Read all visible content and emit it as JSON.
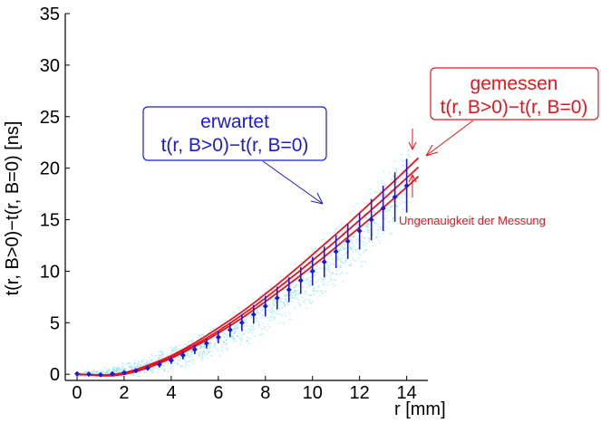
{
  "chart_data": {
    "type": "scatter",
    "title": "",
    "xlabel": "r [mm]",
    "ylabel": "t(r, B>0)−t(r, B=0) [ns]",
    "xlim": [
      -0.5,
      14.9
    ],
    "ylim": [
      -0.6,
      35
    ],
    "x_ticks": [
      "0",
      "2",
      "4",
      "6",
      "8",
      "10",
      "12",
      "14"
    ],
    "y_ticks": [
      "0",
      "5",
      "10",
      "15",
      "20",
      "25",
      "30",
      "35"
    ],
    "grid": false,
    "legend": "none",
    "colors": {
      "expected": "#1a1adb",
      "measured": "#e8141e",
      "cloud": "#7fe3ea"
    },
    "series": [
      {
        "kind": "points_with_errorbars",
        "x": [
          0,
          0.5,
          1,
          1.5,
          2,
          2.5,
          3,
          3.5,
          4,
          4.5,
          5,
          5.5,
          6,
          6.5,
          7,
          7.5,
          8,
          8.5,
          9,
          9.5,
          10,
          10.5,
          11,
          11.5,
          12,
          12.5,
          13,
          13.5,
          14
        ],
        "y": [
          0.05,
          0,
          -0.05,
          0.05,
          0.15,
          0.35,
          0.6,
          0.95,
          1.35,
          1.85,
          2.4,
          3.0,
          3.6,
          4.3,
          5.0,
          5.8,
          6.6,
          7.4,
          8.2,
          9.1,
          10.0,
          10.9,
          11.9,
          12.9,
          13.9,
          15.0,
          16.1,
          17.2,
          18.3
        ],
        "err": [
          0.05,
          0.05,
          0.05,
          0.1,
          0.15,
          0.2,
          0.25,
          0.3,
          0.35,
          0.4,
          0.45,
          0.5,
          0.6,
          0.7,
          0.8,
          0.9,
          1.0,
          1.1,
          1.2,
          1.3,
          1.4,
          1.5,
          1.6,
          1.7,
          1.8,
          2.0,
          2.2,
          2.4,
          2.6
        ]
      },
      {
        "kind": "band_curves",
        "x": [
          0,
          0.5,
          1,
          1.5,
          2,
          2.5,
          3,
          3.5,
          4,
          4.5,
          5,
          5.5,
          6,
          6.5,
          7,
          7.5,
          8,
          8.5,
          9,
          9.5,
          10,
          10.5,
          11,
          11.5,
          12,
          12.5,
          13,
          13.5,
          14,
          14.5
        ],
        "upper": [
          0.0,
          -0.05,
          -0.1,
          -0.05,
          0.15,
          0.45,
          0.85,
          1.3,
          1.8,
          2.4,
          3.05,
          3.75,
          4.5,
          5.25,
          6.05,
          6.9,
          7.8,
          8.7,
          9.65,
          10.6,
          11.6,
          12.6,
          13.6,
          14.6,
          15.65,
          16.7,
          17.75,
          18.8,
          19.9,
          21.0
        ],
        "mid": [
          0.0,
          -0.05,
          -0.1,
          -0.05,
          0.1,
          0.4,
          0.75,
          1.2,
          1.7,
          2.25,
          2.85,
          3.5,
          4.2,
          4.95,
          5.75,
          6.55,
          7.4,
          8.3,
          9.2,
          10.1,
          11.05,
          12.0,
          12.95,
          13.95,
          14.95,
          15.95,
          16.95,
          18.0,
          19.05,
          20.1
        ],
        "lower": [
          0.0,
          -0.05,
          -0.15,
          -0.15,
          0.0,
          0.25,
          0.6,
          1.05,
          1.55,
          2.1,
          2.7,
          3.3,
          4.0,
          4.7,
          5.45,
          6.25,
          7.05,
          7.9,
          8.75,
          9.6,
          10.5,
          11.4,
          12.35,
          13.3,
          14.25,
          15.2,
          16.15,
          17.15,
          18.15,
          19.2
        ]
      }
    ],
    "annotations": {
      "expected_title": "erwartet",
      "expected_formula": "t(r, B>0)−t(r, B=0)",
      "measured_title": "gemessen",
      "measured_formula": "t(r, B>0)−t(r, B=0)",
      "uncertainty_note": "Ungenauigkeit der Messung"
    }
  }
}
